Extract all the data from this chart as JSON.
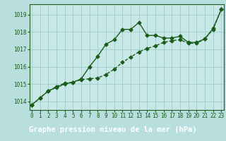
{
  "title": "Graphe pression niveau de la mer (hPa)",
  "bg_color": "#b8dede",
  "plot_bg_color": "#c8e8e8",
  "grid_color": "#a0cccc",
  "line_color": "#1a5c1a",
  "title_bg_color": "#2d6b2d",
  "title_text_color": "#ffffff",
  "x_values": [
    0,
    1,
    2,
    3,
    4,
    5,
    6,
    7,
    8,
    9,
    10,
    11,
    12,
    13,
    14,
    15,
    16,
    17,
    18,
    19,
    20,
    21,
    22,
    23
  ],
  "line1_y": [
    1013.8,
    1014.2,
    1014.6,
    1014.8,
    1015.0,
    1015.1,
    1015.3,
    1016.0,
    1016.6,
    1017.3,
    1017.55,
    1018.15,
    1018.15,
    1018.55,
    1017.8,
    1017.8,
    1017.65,
    1017.65,
    1017.75,
    1017.4,
    1017.4,
    1017.6,
    1018.2,
    1019.3
  ],
  "line2_y": [
    1013.8,
    1014.2,
    1014.6,
    1014.85,
    1015.05,
    1015.1,
    1015.25,
    1015.3,
    1015.35,
    1015.55,
    1015.85,
    1016.25,
    1016.55,
    1016.85,
    1017.05,
    1017.2,
    1017.4,
    1017.5,
    1017.55,
    1017.35,
    1017.35,
    1017.6,
    1018.15,
    1019.3
  ],
  "ylim_min": 1013.5,
  "ylim_max": 1019.6,
  "yticks": [
    1014,
    1015,
    1016,
    1017,
    1018,
    1019
  ],
  "xlim_min": -0.3,
  "xlim_max": 23.3,
  "markersize": 2.5,
  "linewidth": 1.0,
  "title_fontsize": 7.5,
  "tick_fontsize": 5.5,
  "ylabel_fontsize": 7.0
}
